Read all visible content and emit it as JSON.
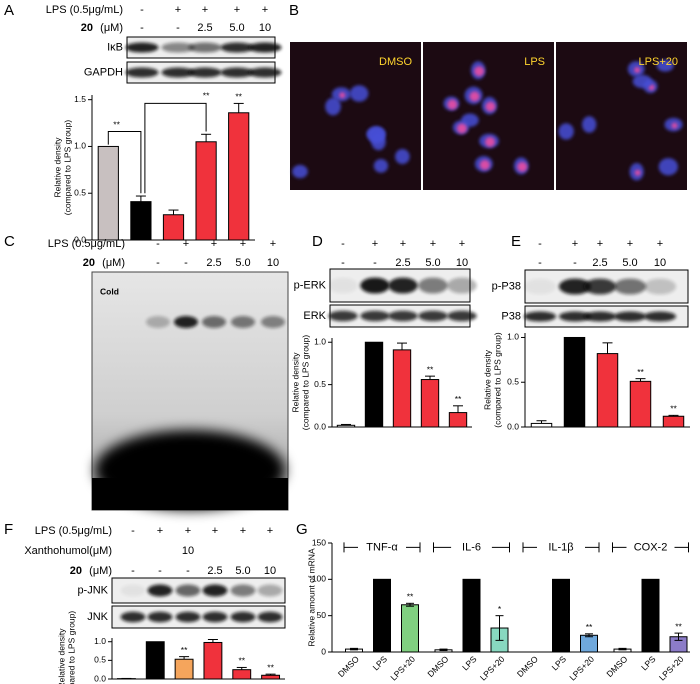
{
  "panels": {
    "A": {
      "letter": "A",
      "header": [
        {
          "label": "LPS (0.5μg/mL)",
          "cells": [
            "-",
            "+",
            "+",
            "+",
            "+"
          ]
        },
        {
          "label": "20",
          "unit": "(μM)",
          "cells": [
            "-",
            "-",
            "2.5",
            "5.0",
            "10"
          ]
        }
      ],
      "blots": [
        "IκB",
        "GAPDH"
      ]
    },
    "B": {
      "letter": "B",
      "images": [
        "DMSO",
        "LPS",
        "LPS+20"
      ]
    },
    "C": {
      "letter": "C",
      "header": [
        {
          "label": "LPS (0.5μg/mL)",
          "cells": [
            "-",
            "+",
            "+",
            "+",
            "+"
          ]
        },
        {
          "label": "20",
          "unit": "(μM)",
          "cells": [
            "-",
            "-",
            "2.5",
            "5.0",
            "10"
          ]
        }
      ],
      "blot_label": "Cold"
    },
    "D": {
      "letter": "D",
      "header": [
        {
          "cells": [
            "-",
            "+",
            "+",
            "+",
            "+"
          ]
        },
        {
          "cells": [
            "-",
            "-",
            "2.5",
            "5.0",
            "10"
          ]
        }
      ],
      "blots": [
        "p-ERK",
        "ERK"
      ]
    },
    "E": {
      "letter": "E",
      "header": [
        {
          "cells": [
            "-",
            "+",
            "+",
            "+",
            "+"
          ]
        },
        {
          "cells": [
            "-",
            "-",
            "2.5",
            "5.0",
            "10"
          ]
        }
      ],
      "blots": [
        "p-P38",
        "P38"
      ]
    },
    "F": {
      "letter": "F",
      "header": [
        {
          "label": "LPS (0.5μg/mL)",
          "cells": [
            "-",
            "+",
            "+",
            "+",
            "+",
            "+"
          ]
        },
        {
          "label": "Xanthohumol(μM)",
          "cells": [
            null,
            null,
            "10",
            null,
            null,
            null
          ]
        },
        {
          "label": "20",
          "unit": "(μM)",
          "cells": [
            "-",
            "-",
            "-",
            "2.5",
            "5.0",
            "10"
          ]
        }
      ],
      "blots": [
        "p-JNK",
        "JNK"
      ]
    },
    "G": {
      "letter": "G"
    }
  },
  "chart_data": [
    {
      "type": "bar",
      "ylabel": [
        "Relative density",
        "(compared to LPS group)"
      ],
      "values": [
        1.0,
        0.41,
        0.27,
        1.05,
        1.36
      ],
      "errors": [
        0,
        0.06,
        0.05,
        0.08,
        0.1
      ],
      "colors": [
        "#c8c0c0",
        "#000000",
        "#f0323c",
        "#f0323c",
        "#f0323c"
      ],
      "sig": [
        null,
        null,
        null,
        null,
        "**"
      ],
      "brackets": [
        {
          "label": "**"
        },
        {
          "label": "**"
        }
      ],
      "ylim": [
        0,
        1.55
      ],
      "yticks": [
        {
          "value": 0,
          "label": "0.0"
        },
        {
          "value": 0.5,
          "label": "0.5"
        },
        {
          "value": 1,
          "label": "1.0"
        },
        {
          "value": 1.5,
          "label": "1.5"
        }
      ]
    },
    {
      "type": "bar",
      "ylabel": [
        "Relative density",
        "(compared to LPS group)"
      ],
      "values": [
        0.02,
        1.0,
        0.91,
        0.56,
        0.17
      ],
      "errors": [
        0.01,
        0,
        0.08,
        0.04,
        0.08
      ],
      "colors": [
        "#ffffff",
        "#000000",
        "#f0323c",
        "#f0323c",
        "#f0323c"
      ],
      "sig": [
        null,
        null,
        null,
        "**",
        "**"
      ],
      "ylim": [
        0,
        1.05
      ],
      "yticks": [
        {
          "value": 0,
          "label": "0.0"
        },
        {
          "value": 0.5,
          "label": "0.5"
        },
        {
          "value": 1,
          "label": "1.0"
        }
      ]
    },
    {
      "type": "bar",
      "ylabel": [
        "Relative density",
        "(compared to LPS group)"
      ],
      "values": [
        0.04,
        1.0,
        0.82,
        0.51,
        0.12
      ],
      "errors": [
        0.03,
        0,
        0.12,
        0.03,
        0.01
      ],
      "colors": [
        "#ffffff",
        "#000000",
        "#f0323c",
        "#f0323c",
        "#f0323c"
      ],
      "sig": [
        null,
        null,
        null,
        "**",
        "**"
      ],
      "ylim": [
        0,
        1.05
      ],
      "yticks": [
        {
          "value": 0,
          "label": "0.0"
        },
        {
          "value": 0.5,
          "label": "0.5"
        },
        {
          "value": 1,
          "label": "1.0"
        }
      ]
    },
    {
      "type": "bar",
      "ylabel": [
        "Relative density",
        "(compared to LPS group)"
      ],
      "values": [
        0.01,
        1.0,
        0.53,
        0.98,
        0.25,
        0.1
      ],
      "errors": [
        0.005,
        0,
        0.07,
        0.08,
        0.06,
        0.03
      ],
      "colors": [
        "#ffffff",
        "#000000",
        "#f5a55c",
        "#f0323c",
        "#f0323c",
        "#f0323c"
      ],
      "sig": [
        null,
        null,
        "**",
        null,
        "**",
        "**"
      ],
      "ylim": [
        0,
        1.1
      ],
      "yticks": [
        {
          "value": 0,
          "label": "0.0"
        },
        {
          "value": 0.5,
          "label": "0.5"
        },
        {
          "value": 1,
          "label": "1.0"
        }
      ]
    },
    {
      "type": "grouped-bar",
      "ylabel": "Relative amount of mRNA",
      "groups": [
        {
          "name": "TNF-α",
          "categories": [
            "DMSO",
            "LPS",
            "LPS+20"
          ],
          "values": [
            4,
            100,
            65
          ],
          "errors": [
            1,
            0,
            2
          ],
          "colors": [
            "#ffffff",
            "#000000",
            "#80d080"
          ],
          "sig": [
            null,
            null,
            "**"
          ]
        },
        {
          "name": "IL-6",
          "categories": [
            "DMSO",
            "LPS",
            "LPS+20"
          ],
          "values": [
            3,
            100,
            33
          ],
          "errors": [
            1,
            0,
            17
          ],
          "colors": [
            "#ffffff",
            "#000000",
            "#88d8c0"
          ],
          "sig": [
            null,
            null,
            "*"
          ]
        },
        {
          "name": "IL-1β",
          "categories": [
            "DMSO",
            "LPS",
            "LPS+20"
          ],
          "values": [
            0,
            100,
            23
          ],
          "errors": [
            0,
            0,
            2
          ],
          "colors": [
            "#ffffff",
            "#000000",
            "#6fa8dc"
          ],
          "sig": [
            null,
            null,
            "**"
          ]
        },
        {
          "name": "COX-2",
          "categories": [
            "DMSO",
            "LPS",
            "LPS+20"
          ],
          "values": [
            4,
            100,
            21
          ],
          "errors": [
            1,
            0,
            5
          ],
          "colors": [
            "#ffffff",
            "#000000",
            "#8c7cc8"
          ],
          "sig": [
            null,
            null,
            "**"
          ]
        }
      ],
      "ylim": [
        0,
        150
      ],
      "yticks": [
        0,
        50,
        100,
        150
      ]
    }
  ]
}
